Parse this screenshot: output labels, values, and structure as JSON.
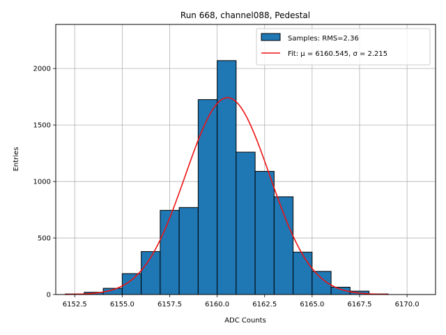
{
  "chart_data": {
    "type": "bar",
    "title": "Run 668, channel088, Pedestal",
    "xlabel": "ADC Counts",
    "ylabel": "Entries",
    "xlim": [
      6151.5,
      6171.5
    ],
    "ylim": [
      0,
      2390
    ],
    "xticks": [
      6152.5,
      6155.0,
      6157.5,
      6160.0,
      6162.5,
      6165.0,
      6167.5,
      6170.0
    ],
    "xtick_labels": [
      "6152.5",
      "6155.0",
      "6157.5",
      "6160.0",
      "6162.5",
      "6165.0",
      "6167.5",
      "6170.0"
    ],
    "yticks": [
      0,
      500,
      1000,
      1500,
      2000
    ],
    "ytick_labels": [
      "0",
      "500",
      "1000",
      "1500",
      "2000"
    ],
    "grid": true,
    "legend_position": "top-right",
    "colors": {
      "bar_fill": "#1f77b4",
      "bar_edge": "#000000",
      "fit_line": "#ee1111",
      "grid": "#b0b0b0"
    },
    "histogram": {
      "name": "Samples: RMS=2.36",
      "bins": [
        {
          "x0": 6152.0,
          "x1": 6153.0,
          "count": 5
        },
        {
          "x0": 6153.0,
          "x1": 6154.0,
          "count": 20
        },
        {
          "x0": 6154.0,
          "x1": 6155.0,
          "count": 55
        },
        {
          "x0": 6155.0,
          "x1": 6156.0,
          "count": 185
        },
        {
          "x0": 6156.0,
          "x1": 6157.0,
          "count": 380
        },
        {
          "x0": 6157.0,
          "x1": 6158.0,
          "count": 745
        },
        {
          "x0": 6158.0,
          "x1": 6159.0,
          "count": 770
        },
        {
          "x0": 6159.0,
          "x1": 6160.0,
          "count": 1725
        },
        {
          "x0": 6160.0,
          "x1": 6161.0,
          "count": 2070
        },
        {
          "x0": 6161.0,
          "x1": 6162.0,
          "count": 1260
        },
        {
          "x0": 6162.0,
          "x1": 6163.0,
          "count": 1090
        },
        {
          "x0": 6163.0,
          "x1": 6164.0,
          "count": 865
        },
        {
          "x0": 6164.0,
          "x1": 6165.0,
          "count": 375
        },
        {
          "x0": 6165.0,
          "x1": 6166.0,
          "count": 205
        },
        {
          "x0": 6166.0,
          "x1": 6167.0,
          "count": 65
        },
        {
          "x0": 6167.0,
          "x1": 6168.0,
          "count": 30
        },
        {
          "x0": 6168.0,
          "x1": 6169.0,
          "count": 5
        }
      ]
    },
    "fit": {
      "name": "Fit: μ = 6160.545, σ = 2.215",
      "mu": 6160.545,
      "sigma": 2.215,
      "amplitude": 1742,
      "x_range": [
        6152.0,
        6169.0
      ]
    }
  }
}
